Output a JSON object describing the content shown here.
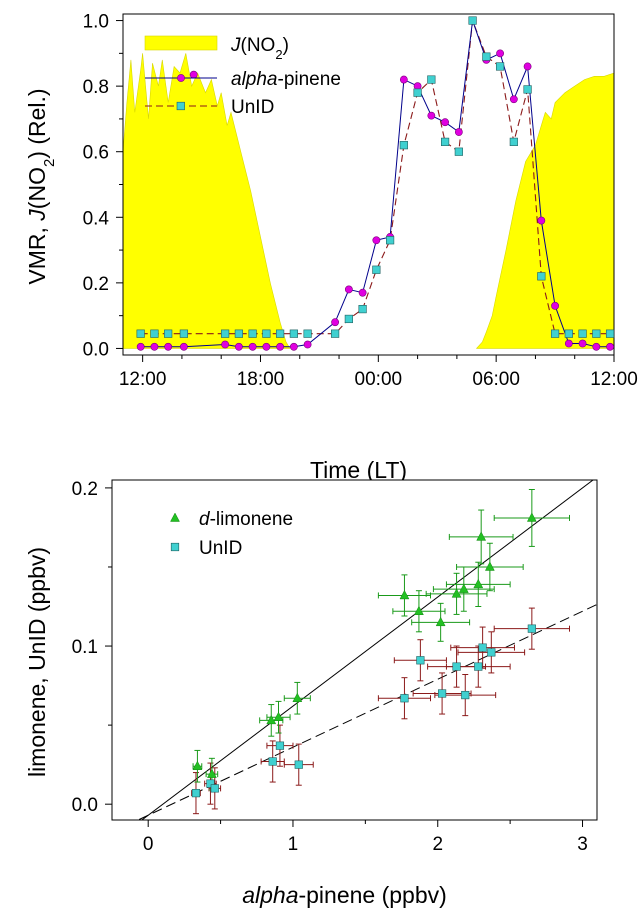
{
  "chart_data": [
    {
      "type": "line",
      "xlabel": "Time (LT)",
      "ylabel_parts": [
        "VMR, ",
        "J",
        "(NO",
        "2",
        ") (Rel.)"
      ],
      "xlim": [
        11.0,
        36.0
      ],
      "ylim": [
        -0.02,
        1.02
      ],
      "x_ticks": [
        {
          "v": 12,
          "label": "12:00"
        },
        {
          "v": 18,
          "label": "18:00"
        },
        {
          "v": 24,
          "label": "00:00"
        },
        {
          "v": 30,
          "label": "06:00"
        },
        {
          "v": 36,
          "label": "12:00"
        }
      ],
      "y_ticks": [
        {
          "v": 0.0,
          "label": "0.0"
        },
        {
          "v": 0.2,
          "label": "0.2"
        },
        {
          "v": 0.4,
          "label": "0.4"
        },
        {
          "v": 0.6,
          "label": "0.6"
        },
        {
          "v": 0.8,
          "label": "0.8"
        },
        {
          "v": 1.0,
          "label": "1.0"
        }
      ],
      "legend": {
        "placement": "top-left",
        "entries": [
          {
            "key": "jno2",
            "parts": [
              "J",
              "(NO",
              "2",
              ")"
            ]
          },
          {
            "key": "apinene",
            "parts": [
              "alpha",
              "-pinene"
            ]
          },
          {
            "key": "unid",
            "parts": [
              "UnID"
            ]
          }
        ]
      },
      "colors": {
        "jno2": "#ffff00",
        "apinene_line": "#00008b",
        "apinene_marker": "#e000e0",
        "unid_line": "#8b1a1a",
        "unid_marker": "#40d0d0"
      },
      "series": [
        {
          "key": "jno2",
          "style": "filled-area",
          "x": [
            11.0,
            11.2,
            11.4,
            11.6,
            11.9,
            12.0,
            12.3,
            12.5,
            12.8,
            13.0,
            13.3,
            13.6,
            13.9,
            14.2,
            14.5,
            14.8,
            15.2,
            15.5,
            15.8,
            16.0,
            16.3,
            16.5,
            17.0,
            17.5,
            18.0,
            18.5,
            19.0,
            19.3,
            19.5,
            29.0,
            29.3,
            29.5,
            29.8,
            30.0,
            30.5,
            31.0,
            31.5,
            32.0,
            32.3,
            32.5,
            32.8,
            33.0,
            33.5,
            34.0,
            34.5,
            35.0,
            35.5,
            36.0
          ],
          "y": [
            0.6,
            0.75,
            0.88,
            0.72,
            0.85,
            0.9,
            0.7,
            0.87,
            0.8,
            0.88,
            0.75,
            0.86,
            0.84,
            0.9,
            0.8,
            0.84,
            0.78,
            0.82,
            0.74,
            0.78,
            0.68,
            0.72,
            0.6,
            0.48,
            0.34,
            0.2,
            0.08,
            0.02,
            0.0,
            0.0,
            0.02,
            0.05,
            0.1,
            0.16,
            0.3,
            0.45,
            0.57,
            0.62,
            0.68,
            0.72,
            0.7,
            0.75,
            0.78,
            0.8,
            0.82,
            0.83,
            0.83,
            0.84
          ]
        },
        {
          "key": "apinene",
          "style": "line-markers",
          "x": [
            11.9,
            12.6,
            13.3,
            14.1,
            16.2,
            16.9,
            17.6,
            18.3,
            19.0,
            19.7,
            20.4,
            21.8,
            22.5,
            23.2,
            23.9,
            24.6,
            25.3,
            26.0,
            26.7,
            27.4,
            28.1,
            28.8,
            29.5,
            30.2,
            30.9,
            31.6,
            32.3,
            33.0,
            33.7,
            34.4,
            35.1,
            35.8
          ],
          "y": [
            0.005,
            0.005,
            0.005,
            0.005,
            0.012,
            0.005,
            0.005,
            0.005,
            0.005,
            0.005,
            0.012,
            0.08,
            0.18,
            0.17,
            0.33,
            0.34,
            0.82,
            0.8,
            0.71,
            0.69,
            0.66,
            1.0,
            0.88,
            0.9,
            0.76,
            0.86,
            0.39,
            0.13,
            0.015,
            0.015,
            0.005,
            0.005
          ]
        },
        {
          "key": "unid",
          "style": "line-markers",
          "x": [
            11.9,
            12.6,
            13.3,
            14.1,
            16.2,
            16.9,
            17.6,
            18.3,
            19.0,
            19.7,
            20.4,
            21.8,
            22.5,
            23.2,
            23.9,
            24.6,
            25.3,
            26.0,
            26.7,
            27.4,
            28.1,
            28.8,
            29.5,
            30.2,
            30.9,
            31.6,
            32.3,
            33.0,
            33.7,
            34.4,
            35.1,
            35.8
          ],
          "y": [
            0.045,
            0.045,
            0.045,
            0.045,
            0.045,
            0.045,
            0.045,
            0.045,
            0.045,
            0.045,
            0.045,
            0.045,
            0.09,
            0.12,
            0.24,
            0.33,
            0.62,
            0.78,
            0.82,
            0.63,
            0.6,
            1.0,
            0.89,
            0.86,
            0.63,
            0.79,
            0.22,
            0.045,
            0.045,
            0.045,
            0.045,
            0.045
          ]
        }
      ],
      "extra_point": {
        "key": "apinene",
        "x": 14.6,
        "y": 0.835
      }
    },
    {
      "type": "scatter",
      "xlabel_parts": [
        "alpha",
        "-pinene (ppbv)"
      ],
      "ylabel": "limonene, UnID (ppbv)",
      "xlim": [
        -0.25,
        3.1
      ],
      "ylim": [
        -0.01,
        0.205
      ],
      "x_ticks": [
        {
          "v": 0,
          "label": "0"
        },
        {
          "v": 1,
          "label": "1"
        },
        {
          "v": 2,
          "label": "2"
        },
        {
          "v": 3,
          "label": "3"
        }
      ],
      "y_ticks": [
        {
          "v": 0.0,
          "label": "0.0"
        },
        {
          "v": 0.1,
          "label": "0.1"
        },
        {
          "v": 0.2,
          "label": "0.2"
        }
      ],
      "legend": {
        "placement": "top-left",
        "entries": [
          {
            "key": "limonene",
            "parts": [
              "d",
              "-limonene"
            ]
          },
          {
            "key": "unid",
            "parts": [
              "UnID"
            ]
          }
        ]
      },
      "colors": {
        "limonene": "#22c022",
        "unid": "#40d0d0",
        "limonene_err": "#1a9a1a",
        "unid_err": "#8b1a1a"
      },
      "series": [
        {
          "key": "limonene",
          "marker": "triangle",
          "points": [
            {
              "x": 0.34,
              "y": 0.024,
              "xerr": 0.03,
              "yerr": 0.01
            },
            {
              "x": 0.44,
              "y": 0.019,
              "xerr": 0.04,
              "yerr": 0.01
            },
            {
              "x": 0.85,
              "y": 0.053,
              "xerr": 0.08,
              "yerr": 0.01
            },
            {
              "x": 0.9,
              "y": 0.055,
              "xerr": 0.08,
              "yerr": 0.01
            },
            {
              "x": 1.03,
              "y": 0.067,
              "xerr": 0.09,
              "yerr": 0.01
            },
            {
              "x": 1.77,
              "y": 0.132,
              "xerr": 0.18,
              "yerr": 0.013
            },
            {
              "x": 1.87,
              "y": 0.122,
              "xerr": 0.18,
              "yerr": 0.013
            },
            {
              "x": 2.02,
              "y": 0.115,
              "xerr": 0.2,
              "yerr": 0.012
            },
            {
              "x": 2.13,
              "y": 0.133,
              "xerr": 0.21,
              "yerr": 0.013
            },
            {
              "x": 2.18,
              "y": 0.136,
              "xerr": 0.21,
              "yerr": 0.014
            },
            {
              "x": 2.28,
              "y": 0.139,
              "xerr": 0.22,
              "yerr": 0.014
            },
            {
              "x": 2.3,
              "y": 0.169,
              "xerr": 0.22,
              "yerr": 0.017
            },
            {
              "x": 2.36,
              "y": 0.15,
              "xerr": 0.23,
              "yerr": 0.015
            },
            {
              "x": 2.65,
              "y": 0.181,
              "xerr": 0.26,
              "yerr": 0.018
            }
          ]
        },
        {
          "key": "unid",
          "marker": "square",
          "points": [
            {
              "x": 0.33,
              "y": 0.007,
              "xerr": 0.03,
              "yerr": 0.013
            },
            {
              "x": 0.43,
              "y": 0.013,
              "xerr": 0.04,
              "yerr": 0.013
            },
            {
              "x": 0.46,
              "y": 0.01,
              "xerr": 0.04,
              "yerr": 0.013
            },
            {
              "x": 0.86,
              "y": 0.027,
              "xerr": 0.08,
              "yerr": 0.013
            },
            {
              "x": 0.91,
              "y": 0.037,
              "xerr": 0.09,
              "yerr": 0.013
            },
            {
              "x": 1.04,
              "y": 0.025,
              "xerr": 0.1,
              "yerr": 0.013
            },
            {
              "x": 1.77,
              "y": 0.067,
              "xerr": 0.18,
              "yerr": 0.013
            },
            {
              "x": 1.88,
              "y": 0.091,
              "xerr": 0.18,
              "yerr": 0.013
            },
            {
              "x": 2.03,
              "y": 0.07,
              "xerr": 0.2,
              "yerr": 0.013
            },
            {
              "x": 2.13,
              "y": 0.087,
              "xerr": 0.2,
              "yerr": 0.013
            },
            {
              "x": 2.19,
              "y": 0.069,
              "xerr": 0.21,
              "yerr": 0.013
            },
            {
              "x": 2.28,
              "y": 0.087,
              "xerr": 0.22,
              "yerr": 0.013
            },
            {
              "x": 2.31,
              "y": 0.099,
              "xerr": 0.22,
              "yerr": 0.013
            },
            {
              "x": 2.37,
              "y": 0.096,
              "xerr": 0.23,
              "yerr": 0.013
            },
            {
              "x": 2.65,
              "y": 0.111,
              "xerr": 0.26,
              "yerr": 0.013
            }
          ]
        }
      ],
      "fit_lines": [
        {
          "key": "limonene",
          "style": "solid",
          "slope": 0.069,
          "intercept": -0.007
        },
        {
          "key": "unid",
          "style": "dashed",
          "slope": 0.043,
          "intercept": -0.007
        }
      ]
    }
  ]
}
